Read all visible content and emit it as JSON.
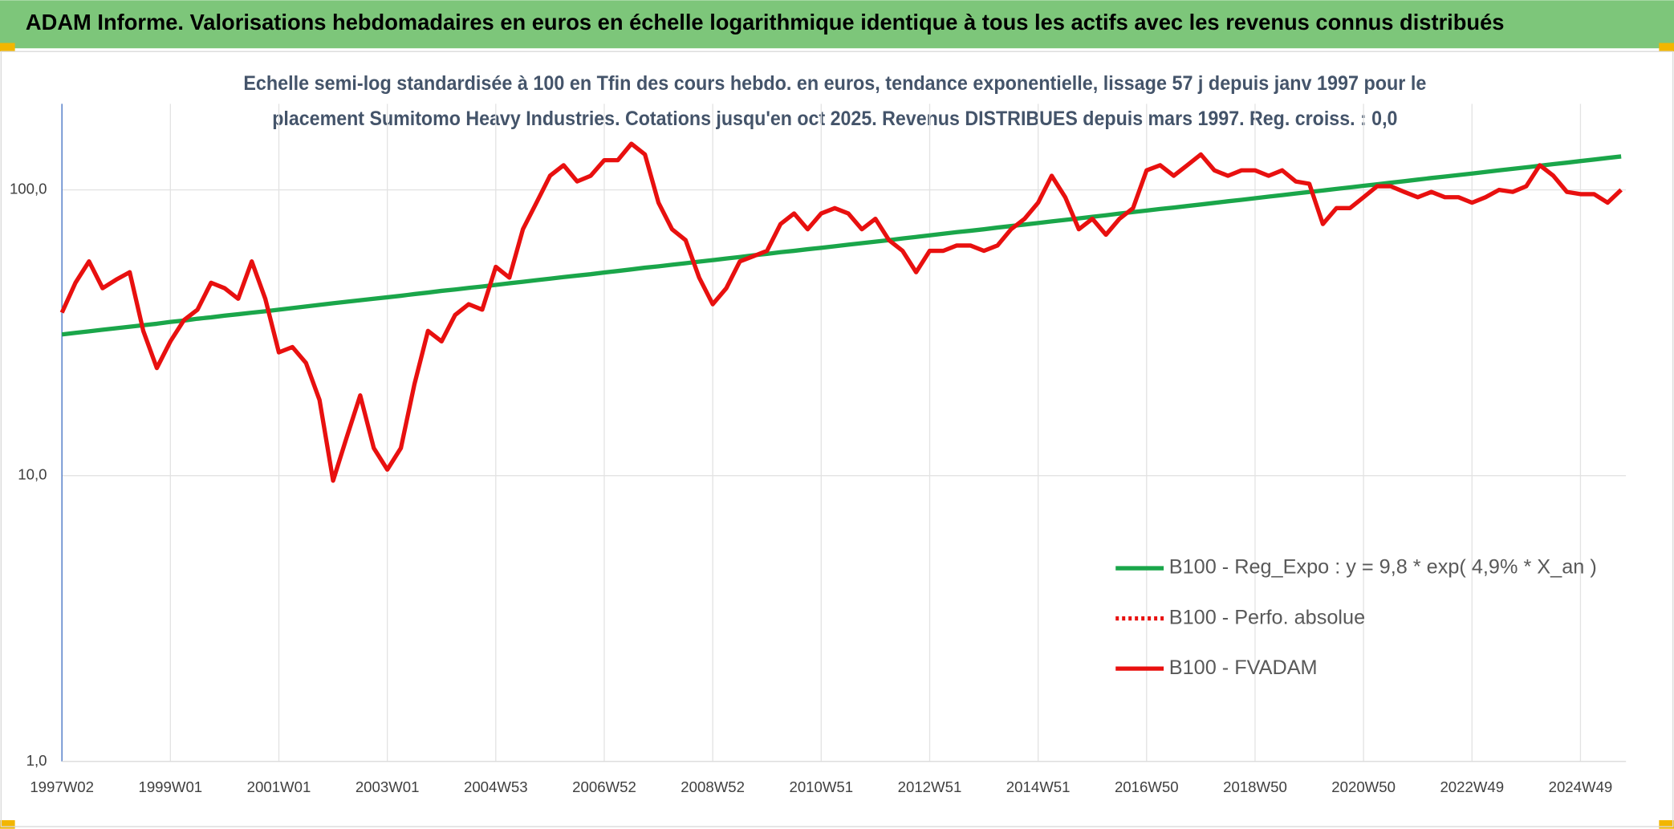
{
  "chart_data": {
    "type": "line",
    "title": "ADAM Informe. Valorisations hebdomadaires en euros en échelle logarithmique identique à tous les actifs avec les revenus connus distribués",
    "subtitle": [
      "Echelle semi-log standardisée à 100 en Tfin des cours hebdo. en euros, tendance exponentielle, lissage 57 j depuis janv 1997 pour le",
      "placement Sumitomo Heavy Industries. Cotations jusqu'en oct 2025. Revenus DISTRIBUES depuis mars 1997. Reg. croiss. : 0,0"
    ],
    "categories": [
      "1997W02",
      null,
      null,
      null,
      null,
      null,
      null,
      null,
      "1999W01",
      null,
      null,
      null,
      null,
      null,
      null,
      null,
      "2001W01",
      null,
      null,
      null,
      null,
      null,
      null,
      null,
      "2003W01",
      null,
      null,
      null,
      null,
      null,
      null,
      null,
      "2004W53",
      null,
      null,
      null,
      null,
      null,
      null,
      null,
      "2006W52",
      null,
      null,
      null,
      null,
      null,
      null,
      null,
      "2008W52",
      null,
      null,
      null,
      null,
      null,
      null,
      null,
      "2010W51",
      null,
      null,
      null,
      null,
      null,
      null,
      null,
      "2012W51",
      null,
      null,
      null,
      null,
      null,
      null,
      null,
      "2014W51",
      null,
      null,
      null,
      null,
      null,
      null,
      null,
      "2016W50",
      null,
      null,
      null,
      null,
      null,
      null,
      null,
      "2018W50",
      null,
      null,
      null,
      null,
      null,
      null,
      null,
      "2020W50",
      null,
      null,
      null,
      null,
      null,
      null,
      null,
      "2022W49",
      null,
      null,
      null,
      null,
      null,
      null,
      null,
      "2024W49",
      null,
      null,
      null
    ],
    "series": [
      {
        "name": "B100 - Reg_Expo : y = 9,8 * exp( 4,9% *  X_an )",
        "color": "#1aa64a",
        "style": "solid",
        "values": [
          31.2,
          31.6,
          32.0,
          32.4,
          32.8,
          33.2,
          33.6,
          34.0,
          34.5,
          34.9,
          35.4,
          35.8,
          36.3,
          36.7,
          37.2,
          37.6,
          38.1,
          38.6,
          39.1,
          39.6,
          40.1,
          40.6,
          41.1,
          41.6,
          42.1,
          42.6,
          43.2,
          43.7,
          44.3,
          44.8,
          45.4,
          45.9,
          46.5,
          47.1,
          47.7,
          48.3,
          48.9,
          49.5,
          50.1,
          50.7,
          51.4,
          52.0,
          52.7,
          53.4,
          54.0,
          54.7,
          55.4,
          56.1,
          56.8,
          57.5,
          58.2,
          59.0,
          59.7,
          60.5,
          61.2,
          62.0,
          62.7,
          63.5,
          64.3,
          65.1,
          65.9,
          66.7,
          67.6,
          68.4,
          69.3,
          70.2,
          71.1,
          71.9,
          72.8,
          73.8,
          74.7,
          75.6,
          76.6,
          77.6,
          78.5,
          79.5,
          80.5,
          81.5,
          82.6,
          83.6,
          84.6,
          85.7,
          86.7,
          87.8,
          88.9,
          90.0,
          91.2,
          92.3,
          93.5,
          94.7,
          95.9,
          97.1,
          98.3,
          99.5,
          100.8,
          102.0,
          103.3,
          104.6,
          105.9,
          107.2,
          108.6,
          110.0,
          111.3,
          112.7,
          114.1,
          115.5,
          117.0,
          118.5,
          119.9,
          121.4,
          123.0,
          124.5,
          126.1,
          127.7,
          129.3,
          130.9
        ]
      },
      {
        "name": "B100 - Perfo. absolue",
        "color": "#e8100f",
        "style": "dotted"
      },
      {
        "name": "B100 - FVADAM",
        "color": "#e8100f",
        "style": "solid",
        "values": [
          37.2,
          47.3,
          56.2,
          45.3,
          48.5,
          51.5,
          32.1,
          23.8,
          29.5,
          35.0,
          38.1,
          47.3,
          45.3,
          41.6,
          56.2,
          41.6,
          27.0,
          28.2,
          24.8,
          18.4,
          9.6,
          13.6,
          19.1,
          12.5,
          10.5,
          12.5,
          20.9,
          32.1,
          29.5,
          36.5,
          39.8,
          38.1,
          53.8,
          49.3,
          72.8,
          90.2,
          112,
          122,
          107,
          112,
          127,
          127,
          145,
          133,
          90.2,
          72.8,
          66.7,
          49.3,
          39.8,
          45.3,
          56.2,
          58.6,
          61.2,
          75.9,
          82.7,
          72.8,
          82.7,
          86.3,
          82.7,
          72.8,
          79.2,
          66.7,
          61.2,
          51.5,
          61.2,
          61.2,
          63.9,
          63.9,
          61.2,
          63.9,
          72.8,
          79.2,
          90.2,
          112,
          94.2,
          72.8,
          79.2,
          69.7,
          79.2,
          86.3,
          117,
          122,
          112,
          122,
          133,
          117,
          112,
          117,
          117,
          112,
          117,
          107,
          105,
          75.9,
          86.3,
          86.3,
          94.2,
          103,
          103,
          98.4,
          94.2,
          98.4,
          94.2,
          94.2,
          90.2,
          94.2,
          100,
          98.4,
          103,
          122,
          112,
          98.4,
          96.6,
          96.6,
          90.2,
          100
        ]
      }
    ],
    "log_y": true,
    "ylim": [
      1,
      200
    ],
    "yticks": [
      {
        "value": 1,
        "label": "1,0"
      },
      {
        "value": 10,
        "label": "10,0"
      },
      {
        "value": 100,
        "label": "100,0"
      }
    ],
    "grid": true
  }
}
